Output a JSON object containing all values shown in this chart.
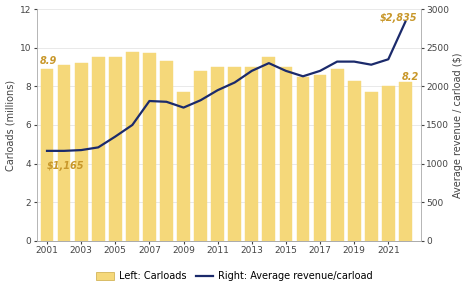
{
  "years": [
    2001,
    2002,
    2003,
    2004,
    2005,
    2006,
    2007,
    2008,
    2009,
    2010,
    2011,
    2012,
    2013,
    2014,
    2015,
    2016,
    2017,
    2018,
    2019,
    2020,
    2021,
    2022
  ],
  "carloads": [
    8.9,
    9.1,
    9.2,
    9.5,
    9.5,
    9.8,
    9.7,
    9.3,
    7.7,
    8.8,
    9.0,
    9.0,
    9.0,
    9.5,
    9.0,
    8.5,
    8.6,
    8.9,
    8.3,
    7.7,
    8.0,
    8.2
  ],
  "avg_revenue": [
    1165,
    1165,
    1175,
    1210,
    1350,
    1500,
    1810,
    1800,
    1725,
    1820,
    1950,
    2050,
    2200,
    2300,
    2200,
    2130,
    2200,
    2320,
    2320,
    2280,
    2350,
    2835
  ],
  "bar_color": "#F5D87A",
  "bar_edge_color": "#E8C84A",
  "line_color": "#1B2A6B",
  "ylim_left": [
    0,
    12
  ],
  "ylim_right": [
    0,
    3000
  ],
  "yticks_left": [
    0,
    2,
    4,
    6,
    8,
    10,
    12
  ],
  "yticks_right": [
    0,
    500,
    1000,
    1500,
    2000,
    2500,
    3000
  ],
  "ylabel_left": "Carloads (millions)",
  "ylabel_right": "Average revenue / carload ($)",
  "annotation_start_label": "$1,165",
  "annotation_end_label": "$2,835",
  "carload_start_label": "8.9",
  "carload_end_label": "8.2",
  "legend_bar_label": "Left: Carloads",
  "legend_line_label": "Right: Average revenue/carload",
  "background_color": "#ffffff",
  "line_width": 1.6,
  "bar_width": 0.75,
  "annotation_color": "#C8972A",
  "annotation_fontsize": 7.0,
  "axis_label_fontsize": 7.0,
  "tick_fontsize": 6.5,
  "legend_fontsize": 7.0,
  "spine_color": "#aaaaaa",
  "grid_color": "#e0e0e0"
}
